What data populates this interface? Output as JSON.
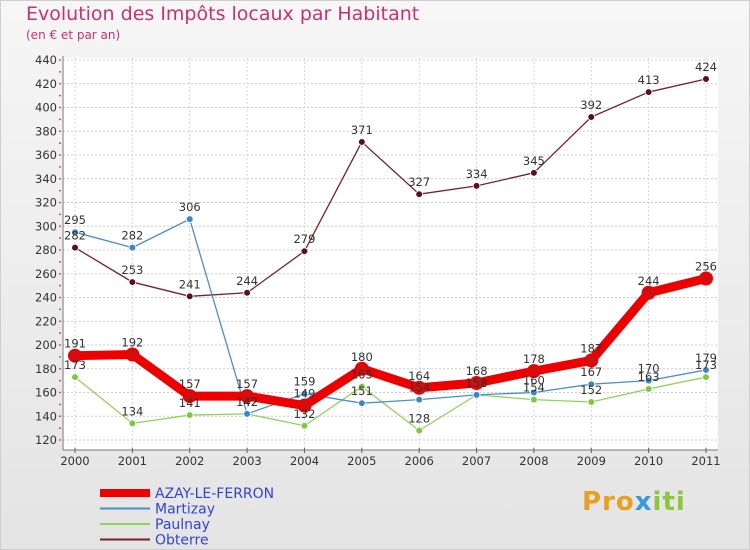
{
  "title": "Evolution des Impôts locaux par Habitant",
  "subtitle": "(en € et par an)",
  "logo": "Proxiti",
  "chart_data": {
    "type": "line",
    "title": "Evolution des Impôts locaux par Habitant",
    "subtitle": "(en € et par an)",
    "xlabel": "",
    "ylabel": "",
    "x": [
      "2000",
      "2001",
      "2002",
      "2003",
      "2004",
      "2005",
      "2006",
      "2007",
      "2008",
      "2009",
      "2010",
      "2011"
    ],
    "ylim": [
      120,
      440
    ],
    "yticks": [
      120,
      140,
      160,
      180,
      200,
      220,
      240,
      260,
      280,
      300,
      320,
      340,
      360,
      380,
      400,
      420,
      440
    ],
    "grid": true,
    "legend_position": "bottom-left",
    "series": [
      {
        "name": "AZAY-LE-FERRON",
        "color": "#ee0000",
        "values": [
          191,
          192,
          157,
          157,
          149,
          180,
          164,
          168,
          178,
          187,
          244,
          256
        ]
      },
      {
        "name": "Martizay",
        "color": "#4a90c8",
        "values": [
          295,
          282,
          306,
          142,
          159,
          151,
          154,
          158,
          160,
          167,
          170,
          179
        ]
      },
      {
        "name": "Paulnay",
        "color": "#8fd45a",
        "values": [
          173,
          134,
          141,
          142,
          132,
          165,
          128,
          158,
          154,
          152,
          163,
          173
        ]
      },
      {
        "name": "Obterre",
        "color": "#7a1f2b",
        "values": [
          282,
          253,
          241,
          244,
          279,
          371,
          327,
          334,
          345,
          392,
          413,
          424
        ]
      }
    ]
  }
}
